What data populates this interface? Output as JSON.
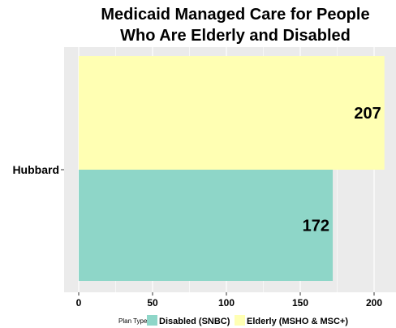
{
  "chart_data": {
    "type": "bar",
    "orientation": "horizontal",
    "title": "Medicaid Managed Care for People Who Are Elderly and Disabled",
    "title_lines": [
      "Medicaid Managed Care for People",
      "Who Are Elderly and Disabled"
    ],
    "categories": [
      "Hubbard"
    ],
    "series": [
      {
        "name": "Disabled (SNBC)",
        "values": [
          172
        ],
        "color": "#8ed6c8"
      },
      {
        "name": "Elderly (MSHO & MSC+)",
        "values": [
          207
        ],
        "color": "#ffffb3"
      }
    ],
    "xlim": [
      0,
      210
    ],
    "xticks": [
      0,
      50,
      100,
      150,
      200
    ],
    "xlabel": "",
    "ylabel": "",
    "grid": true,
    "legend": {
      "title": "Plan Type:",
      "position": "bottom"
    },
    "panel_background": "#ebebeb",
    "grid_color": "#ffffff"
  }
}
